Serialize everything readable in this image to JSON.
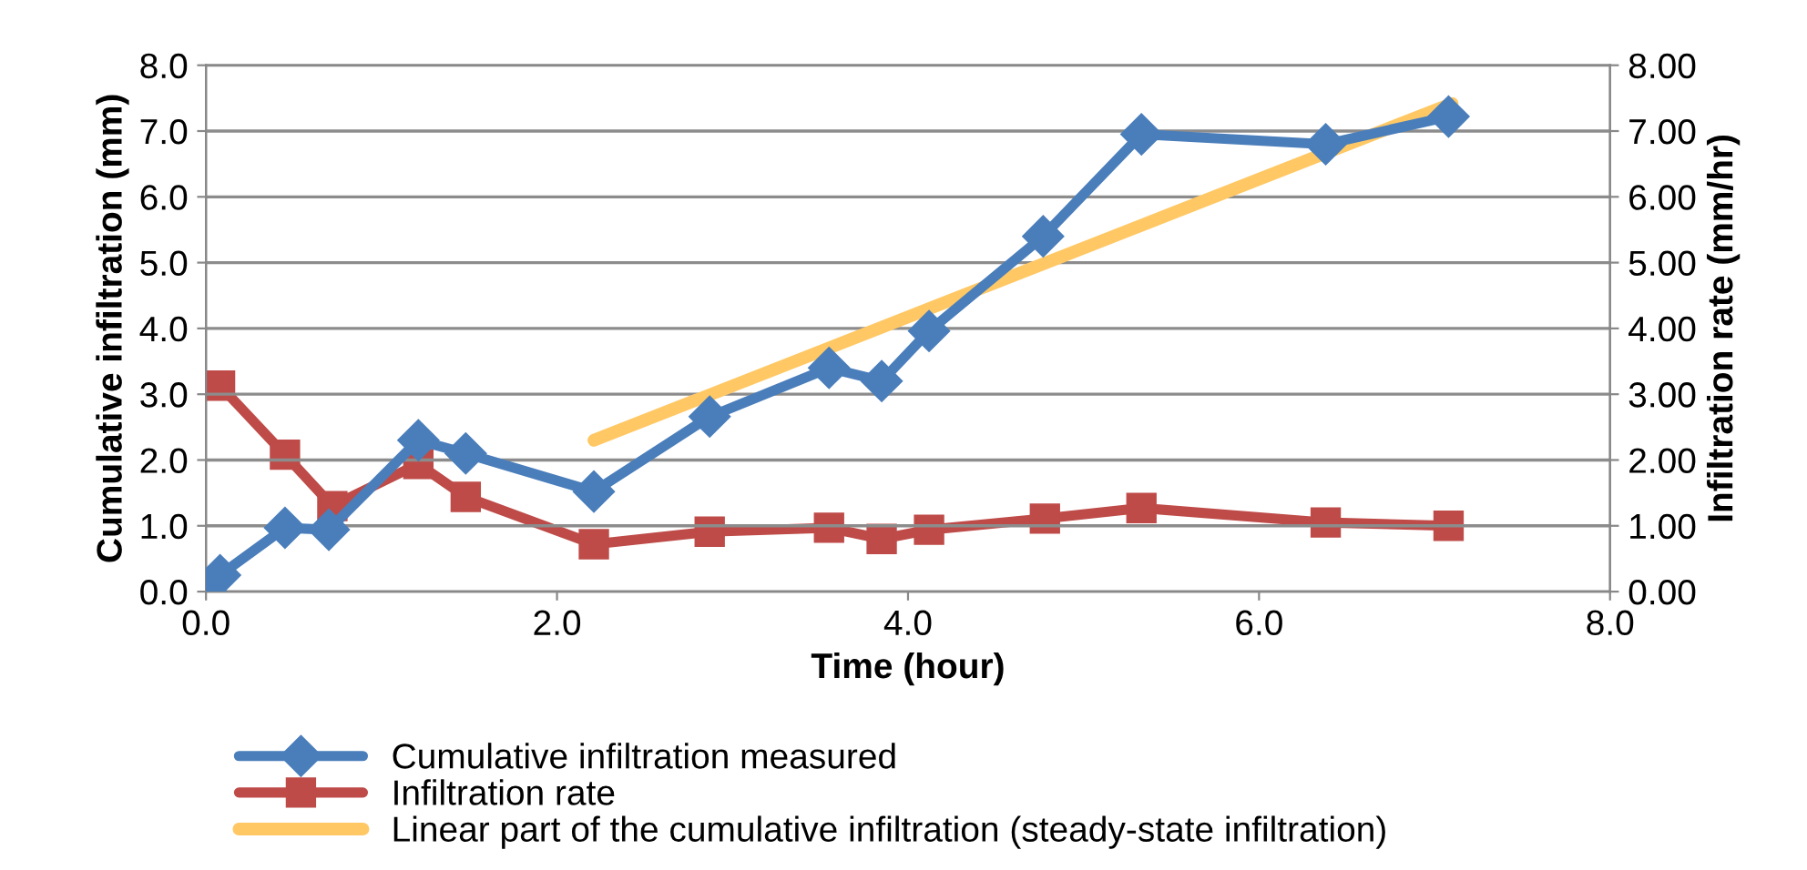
{
  "chart_data": {
    "type": "line",
    "xlabel": "Time (hour)",
    "ylabel": "Cumulative infiltration (mm)",
    "y2label": "Infiltration rate (mm/hr)",
    "xlim": [
      0,
      8
    ],
    "xticks": [
      {
        "value": 0,
        "label": "0.0"
      },
      {
        "value": 2,
        "label": "2.0"
      },
      {
        "value": 4,
        "label": "4.0"
      },
      {
        "value": 6,
        "label": "6.0"
      },
      {
        "value": 8,
        "label": "8.0"
      }
    ],
    "ylim": [
      0,
      8
    ],
    "yticks": [
      {
        "value": 0,
        "label": "0.0"
      },
      {
        "value": 1,
        "label": "1.0"
      },
      {
        "value": 2,
        "label": "2.0"
      },
      {
        "value": 3,
        "label": "3.0"
      },
      {
        "value": 4,
        "label": "4.0"
      },
      {
        "value": 5,
        "label": "5.0"
      },
      {
        "value": 6,
        "label": "6.0"
      },
      {
        "value": 7,
        "label": "7.0"
      },
      {
        "value": 8,
        "label": "8.0"
      }
    ],
    "y2lim": [
      0,
      8
    ],
    "y2ticks": [
      {
        "value": 0,
        "label": "0.00"
      },
      {
        "value": 1,
        "label": "1.00"
      },
      {
        "value": 2,
        "label": "2.00"
      },
      {
        "value": 3,
        "label": "3.00"
      },
      {
        "value": 4,
        "label": "4.00"
      },
      {
        "value": 5,
        "label": "5.00"
      },
      {
        "value": 6,
        "label": "6.00"
      },
      {
        "value": 7,
        "label": "7.00"
      },
      {
        "value": 8,
        "label": "8.00"
      }
    ],
    "grid": "y",
    "legend": "bottom",
    "line_style": "solid",
    "series": [
      {
        "name": "Cumulative infiltration measured",
        "color": "#4a7ebb",
        "marker": "diamond",
        "x": [
          0,
          0.08,
          0.45,
          0.7,
          1.21,
          1.48,
          2.21,
          2.87,
          3.55,
          3.85,
          4.12,
          4.77,
          5.33,
          6.38,
          7.08
        ],
        "values": [
          0,
          0.25,
          0.97,
          0.94,
          2.3,
          2.1,
          1.52,
          2.66,
          3.4,
          3.2,
          3.96,
          5.4,
          6.95,
          6.8,
          7.22
        ]
      },
      {
        "name": "Infiltration rate",
        "color": "#be4b48",
        "marker": "square",
        "axis": "y2",
        "x": [
          0.08,
          0.45,
          0.72,
          1.21,
          1.48,
          2.21,
          2.87,
          3.55,
          3.85,
          4.12,
          4.78,
          5.33,
          6.38,
          7.08
        ],
        "values": [
          3.13,
          2.08,
          1.3,
          1.94,
          1.44,
          0.72,
          0.91,
          0.97,
          0.8,
          0.94,
          1.11,
          1.27,
          1.05,
          1.0
        ]
      },
      {
        "name": "Linear part of the cumulative infiltration (steady-state infiltration)",
        "color": "#ffc864",
        "marker": "none",
        "x": [
          2.21,
          7.1
        ],
        "values": [
          2.3,
          7.42
        ]
      }
    ]
  }
}
